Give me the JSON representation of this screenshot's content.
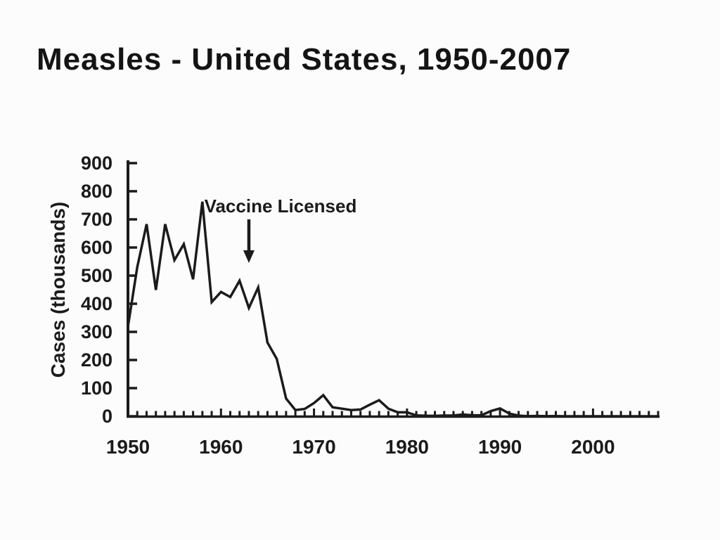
{
  "slide": {
    "background_color": "#fcfcfc",
    "ink_color": "#1b1b1b"
  },
  "chart_data": {
    "type": "line",
    "title": "Measles - United States, 1950-2007",
    "xlabel": "",
    "ylabel": "Cases (thousands)",
    "xlim": [
      1950,
      2007
    ],
    "ylim": [
      0,
      900
    ],
    "grid": false,
    "legend": "none",
    "x_tick_labels": [
      1950,
      1960,
      1970,
      1980,
      1990,
      2000
    ],
    "x_minor_tick_step_years": 1,
    "y_ticks": [
      0,
      100,
      200,
      300,
      400,
      500,
      600,
      700,
      800,
      900
    ],
    "line_color": "#1b1b1b",
    "annotation": {
      "text": "Vaccine Licensed",
      "arrow_points_to_year": 1963,
      "arrow_direction": "down"
    },
    "x": [
      1950,
      1951,
      1952,
      1953,
      1954,
      1955,
      1956,
      1957,
      1958,
      1959,
      1960,
      1961,
      1962,
      1963,
      1964,
      1965,
      1966,
      1967,
      1968,
      1969,
      1970,
      1971,
      1972,
      1973,
      1974,
      1975,
      1976,
      1977,
      1978,
      1979,
      1980,
      1981,
      1982,
      1983,
      1984,
      1985,
      1986,
      1987,
      1988,
      1989,
      1990,
      1991,
      1992,
      1993,
      1994,
      1995,
      1996,
      1997,
      1998,
      1999,
      2000,
      2001,
      2002,
      2003,
      2004,
      2005,
      2006,
      2007
    ],
    "series": [
      {
        "name": "Measles cases (thousands)",
        "values": [
          319,
          530,
          683,
          449,
          683,
          555,
          612,
          487,
          763,
          406,
          442,
          424,
          482,
          385,
          458,
          262,
          204,
          63,
          22,
          26,
          47,
          75,
          32,
          27,
          22,
          24,
          41,
          57,
          27,
          14,
          14,
          3.1,
          1.7,
          1.5,
          2.6,
          2.8,
          6.3,
          3.7,
          3.4,
          18.2,
          27.8,
          9.6,
          2.2,
          0.3,
          1.0,
          0.3,
          0.5,
          0.1,
          0.1,
          0.1,
          0.1,
          0.1,
          0.1,
          0.1,
          0.1,
          0.1,
          0.1,
          0.1
        ]
      }
    ]
  }
}
